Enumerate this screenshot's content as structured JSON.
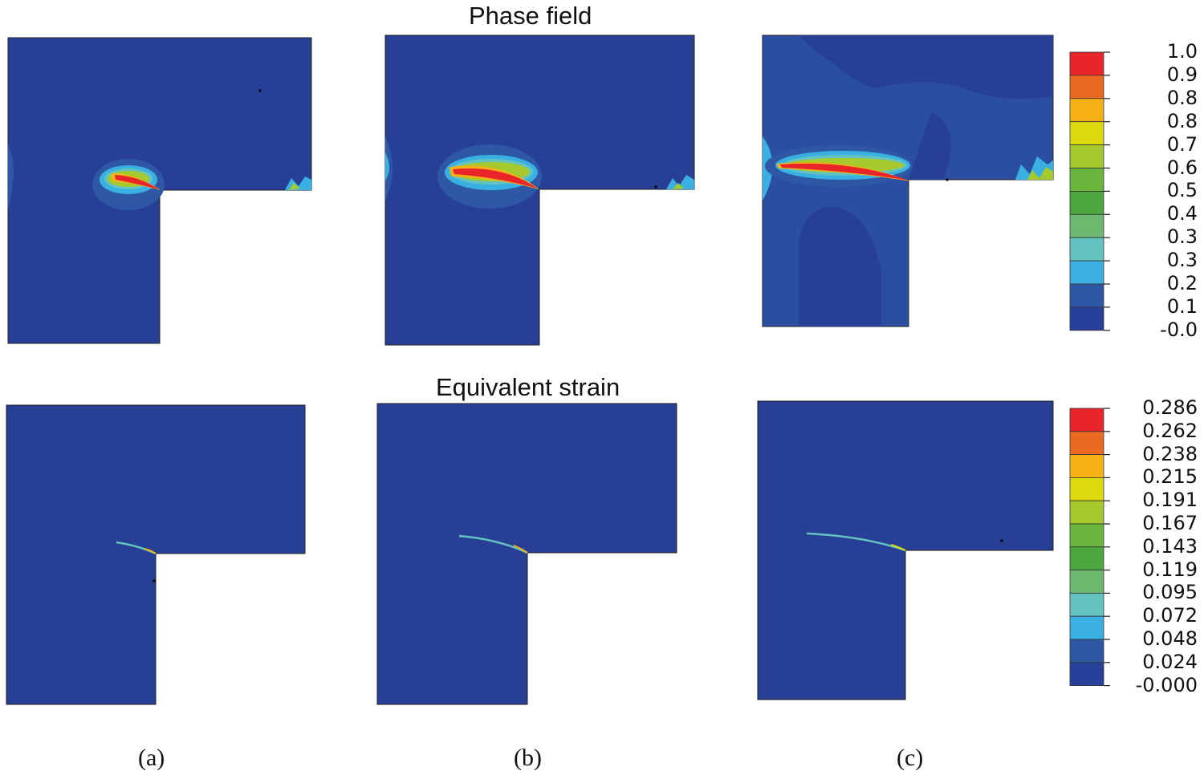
{
  "titles": {
    "top": "Phase field",
    "bottom": "Equivalent strain"
  },
  "captions": [
    "(a)",
    "(b)",
    "(c)"
  ],
  "colorbars": {
    "phase_field": {
      "labels": [
        "1.0",
        "0.9",
        "0.8",
        "0.8",
        "0.7",
        "0.6",
        "0.5",
        "0.4",
        "0.3",
        "0.3",
        "0.2",
        "0.1",
        "-0.0"
      ]
    },
    "equivalent_strain": {
      "labels": [
        "0.286",
        "0.262",
        "0.238",
        "0.215",
        "0.191",
        "0.167",
        "0.143",
        "0.119",
        "0.095",
        "0.072",
        "0.048",
        "0.024",
        "-0.000"
      ]
    }
  },
  "colors": {
    "scale": [
      "#e8262a",
      "#ea6a22",
      "#f6b215",
      "#dcd90f",
      "#a6c92e",
      "#6ab53c",
      "#4ca83e",
      "#6cb86e",
      "#62c3c0",
      "#3ab0e2",
      "#2e58a6",
      "#27409a"
    ],
    "background_field": "#273f94",
    "secondary_field": "#2b4fa0"
  }
}
